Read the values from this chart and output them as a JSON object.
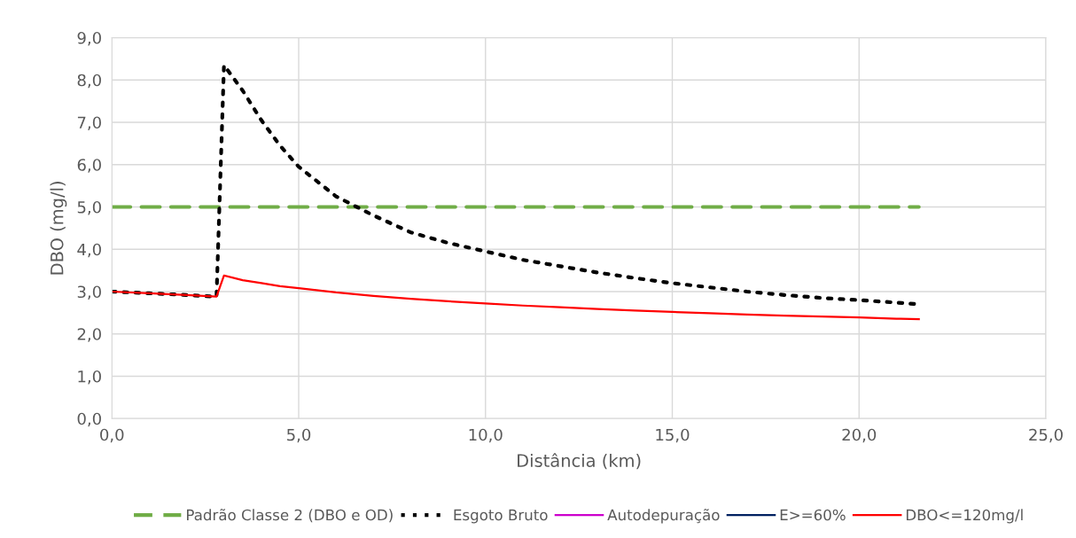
{
  "chart_data": {
    "type": "line",
    "xlabel": "Distância (km)",
    "ylabel": "DBO (mg/l)",
    "x": [
      0,
      1,
      2,
      2.8,
      3.0,
      3.5,
      4,
      4.5,
      5,
      6,
      7,
      8,
      9,
      10,
      11,
      12,
      13,
      14,
      15,
      16,
      17,
      18,
      19,
      20,
      21,
      21.6
    ],
    "series": [
      {
        "name": "Padrão Classe 2 (DBO e OD)",
        "color": "#70ad47",
        "line_style": "dashed",
        "x": [
          0,
          21.6
        ],
        "values": [
          5.0,
          5.0
        ]
      },
      {
        "name": "Esgoto Bruto",
        "color": "#000000",
        "line_style": "dotted",
        "values": [
          3.0,
          2.96,
          2.92,
          2.88,
          8.35,
          7.75,
          7.05,
          6.45,
          5.95,
          5.25,
          4.8,
          4.4,
          4.15,
          3.95,
          3.75,
          3.6,
          3.45,
          3.32,
          3.2,
          3.1,
          3.0,
          2.92,
          2.85,
          2.8,
          2.74,
          2.7
        ]
      },
      {
        "name": "Autodepuração",
        "color": "#cc00cc",
        "line_style": "solid",
        "values": [
          null,
          null,
          null,
          null,
          null,
          null,
          null,
          null,
          null,
          null,
          null,
          null,
          null,
          null,
          null,
          null,
          null,
          null,
          null,
          null,
          null,
          null,
          null,
          null,
          null,
          null
        ]
      },
      {
        "name": "E>=60%",
        "color": "#002060",
        "line_style": "solid",
        "values": [
          null,
          null,
          null,
          null,
          null,
          null,
          null,
          null,
          null,
          null,
          null,
          null,
          null,
          null,
          null,
          null,
          null,
          null,
          null,
          null,
          null,
          null,
          null,
          null,
          null,
          null
        ]
      },
      {
        "name": "DBO<=120mg/l",
        "color": "#ff0000",
        "line_style": "solid",
        "values": [
          3.0,
          2.96,
          2.92,
          2.88,
          3.38,
          3.27,
          3.2,
          3.13,
          3.08,
          2.98,
          2.9,
          2.83,
          2.77,
          2.72,
          2.67,
          2.63,
          2.59,
          2.55,
          2.52,
          2.49,
          2.46,
          2.43,
          2.41,
          2.39,
          2.36,
          2.35
        ]
      }
    ],
    "xlim": [
      0,
      25
    ],
    "xticks": [
      {
        "value": 0,
        "label": "0,0"
      },
      {
        "value": 5,
        "label": "5,0"
      },
      {
        "value": 10,
        "label": "10,0"
      },
      {
        "value": 15,
        "label": "15,0"
      },
      {
        "value": 20,
        "label": "20,0"
      },
      {
        "value": 25,
        "label": "25,0"
      }
    ],
    "ylim": [
      0,
      9
    ],
    "yticks": [
      {
        "value": 0,
        "label": "0,0"
      },
      {
        "value": 1,
        "label": "1,0"
      },
      {
        "value": 2,
        "label": "2,0"
      },
      {
        "value": 3,
        "label": "3,0"
      },
      {
        "value": 4,
        "label": "4,0"
      },
      {
        "value": 5,
        "label": "5,0"
      },
      {
        "value": 6,
        "label": "6,0"
      },
      {
        "value": 7,
        "label": "7,0"
      },
      {
        "value": 8,
        "label": "8,0"
      },
      {
        "value": 9,
        "label": "9,0"
      }
    ],
    "grid": true,
    "legend": "bottom",
    "marker": "none"
  }
}
